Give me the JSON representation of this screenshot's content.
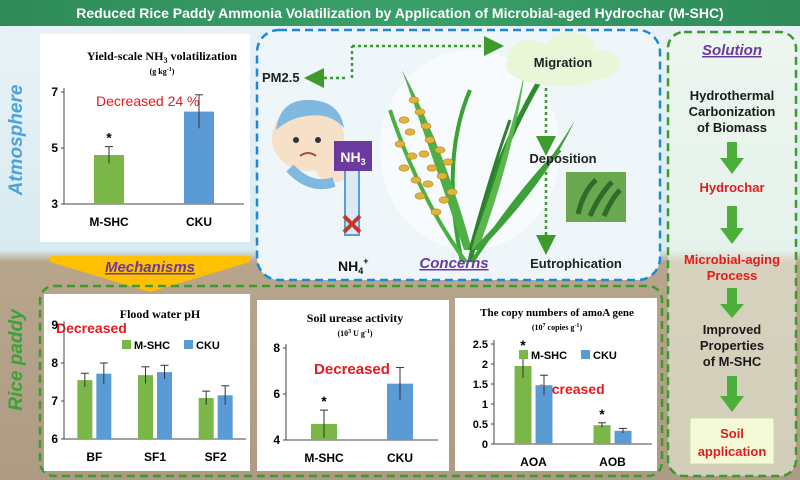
{
  "title": "Reduced Rice Paddy Ammonia Volatilization by Application of Microbial-aged Hydrochar (M-SHC)",
  "side_labels": {
    "top": "Atmosphere",
    "bottom": "Rice paddy"
  },
  "colors": {
    "mshc": "#7ab648",
    "cku": "#5b9bd5",
    "red": "#e41a1c",
    "green": "#3c9b2c",
    "navy": "#1f3864",
    "title_bg": "#2e8b57",
    "arrow": "#4caf3a"
  },
  "charts": {
    "yield": {
      "title": "Yield-scale NH",
      "title_sub": "3",
      "title_end": " volatilization",
      "unit": "(g kg",
      "unit_sup": "-1",
      "unit_end": ")",
      "note": "Decreased 24 %",
      "categories": [
        "M-SHC",
        "CKU"
      ],
      "values": [
        4.75,
        6.3
      ],
      "errors": [
        0.3,
        0.6
      ],
      "yticks": [
        "7",
        "5",
        "3"
      ],
      "ylim": [
        3,
        7
      ],
      "star": "*"
    },
    "ph": {
      "title": "Flood water pH",
      "note": "Decreased",
      "legend": [
        "M-SHC",
        "CKU"
      ],
      "categories": [
        "BF",
        "SF1",
        "SF2"
      ],
      "series": [
        {
          "values": [
            7.55,
            7.68,
            7.08
          ]
        },
        {
          "values": [
            7.72,
            7.76,
            7.15
          ]
        }
      ],
      "errors": [
        [
          0.18,
          0.22,
          0.18
        ],
        [
          0.28,
          0.18,
          0.25
        ]
      ],
      "yticks": [
        "9",
        "8",
        "7",
        "6"
      ],
      "ylim": [
        6,
        9
      ]
    },
    "urease": {
      "title": "Soil urease activity",
      "unit": "(10",
      "unit_sup": "3",
      "unit_mid": " U g",
      "unit_sup2": "-1",
      "unit_end": ")",
      "note": "Decreased",
      "categories": [
        "M-SHC",
        "CKU"
      ],
      "values": [
        4.7,
        6.45
      ],
      "errors": [
        0.6,
        0.7
      ],
      "yticks": [
        "8",
        "6",
        "4"
      ],
      "ylim": [
        4,
        8
      ],
      "star": "*"
    },
    "amoa": {
      "title": "The copy numbers of amoA gene",
      "unit": "(10",
      "unit_sup": "7",
      "unit_mid": " copies g",
      "unit_sup2": "-1",
      "unit_end": ")",
      "note": "Increased",
      "legend": [
        "M-SHC",
        "CKU"
      ],
      "categories": [
        "AOA",
        "AOB"
      ],
      "series": [
        {
          "values": [
            1.95,
            0.47
          ]
        },
        {
          "values": [
            1.47,
            0.33
          ]
        }
      ],
      "errors": [
        [
          0.3,
          0.06
        ],
        [
          0.25,
          0.06
        ]
      ],
      "yticks": [
        "2.5",
        "2",
        "1.5",
        "1",
        "0.5",
        "0"
      ],
      "ylim": [
        0,
        2.5
      ],
      "stars": [
        "*",
        "*"
      ]
    }
  },
  "concerns": {
    "pm": "PM2.5",
    "migration": "Migration",
    "deposition": "Deposition",
    "eutrophication": "Eutrophication",
    "nh3": "NH",
    "nh3_sub": "3",
    "nh4": "NH",
    "nh4_sub": "4",
    "nh4_sup": "+",
    "label": "Concerns"
  },
  "mechanisms": "Mechanisms",
  "solution": {
    "heading": "Solution",
    "step1": [
      "Hydrothermal",
      "Carbonization",
      "of Biomass"
    ],
    "step2": "Hydrochar",
    "step3": [
      "Microbial-aging",
      "Process"
    ],
    "step4": [
      "Improved",
      "Properties",
      "of M-SHC"
    ],
    "step5": [
      "Soil",
      "application"
    ]
  }
}
